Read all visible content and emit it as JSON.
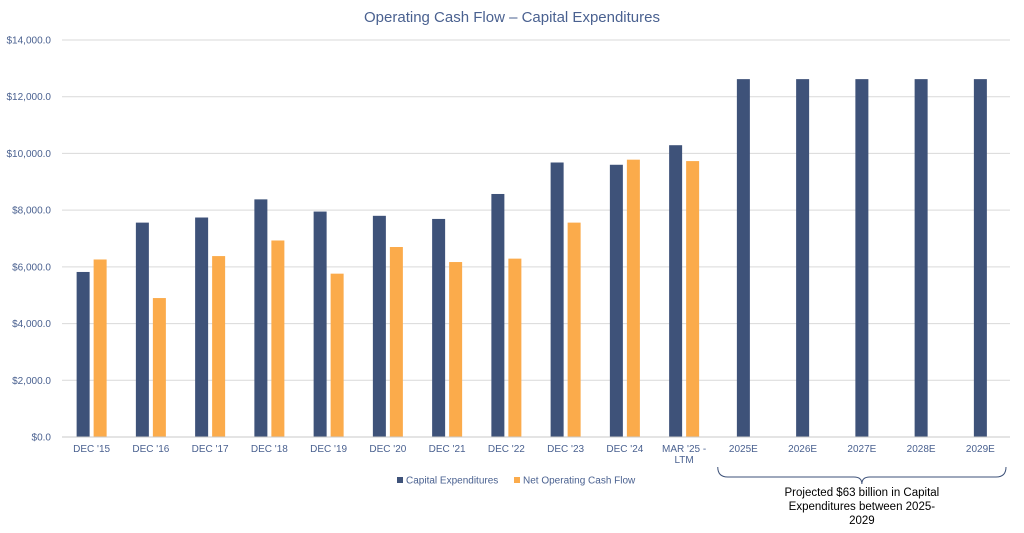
{
  "chart_data": {
    "type": "bar",
    "title": "Operating Cash Flow – Capital Expenditures",
    "xlabel": "",
    "ylabel": "",
    "ylim": [
      0,
      14000
    ],
    "y_ticks": [
      0,
      2000,
      4000,
      6000,
      8000,
      10000,
      12000,
      14000
    ],
    "y_tick_labels": [
      "$0.0",
      "$2,000.0",
      "$4,000.0",
      "$6,000.0",
      "$8,000.0",
      "$10,000.0",
      "$12,000.0",
      "$14,000.0"
    ],
    "categories": [
      "DEC '15",
      "DEC '16",
      "DEC '17",
      "DEC '18",
      "DEC '19",
      "DEC '20",
      "DEC '21",
      "DEC '22",
      "DEC '23",
      "DEC '24",
      "MAR '25 - LTM",
      "2025E",
      "2026E",
      "2027E",
      "2028E",
      "2029E"
    ],
    "series": [
      {
        "name": "Capital Expenditures",
        "color": "#3e5279",
        "values": [
          5820,
          7560,
          7740,
          8380,
          7950,
          7800,
          7690,
          8570,
          9680,
          9600,
          10290,
          12620,
          12620,
          12620,
          12620,
          12620
        ]
      },
      {
        "name": "Net Operating Cash Flow",
        "color": "#fbab4b",
        "values": [
          6260,
          4900,
          6380,
          6930,
          5760,
          6700,
          6170,
          6290,
          7560,
          9780,
          9730,
          null,
          null,
          null,
          null,
          null
        ]
      }
    ],
    "grid": true,
    "legend_position": "bottom",
    "annotation": {
      "text_lines": [
        "Projected $63 billion in Capital",
        "Expenditures between 2025-",
        "2029"
      ],
      "spans_categories": [
        "2025E",
        "2029E"
      ]
    }
  }
}
